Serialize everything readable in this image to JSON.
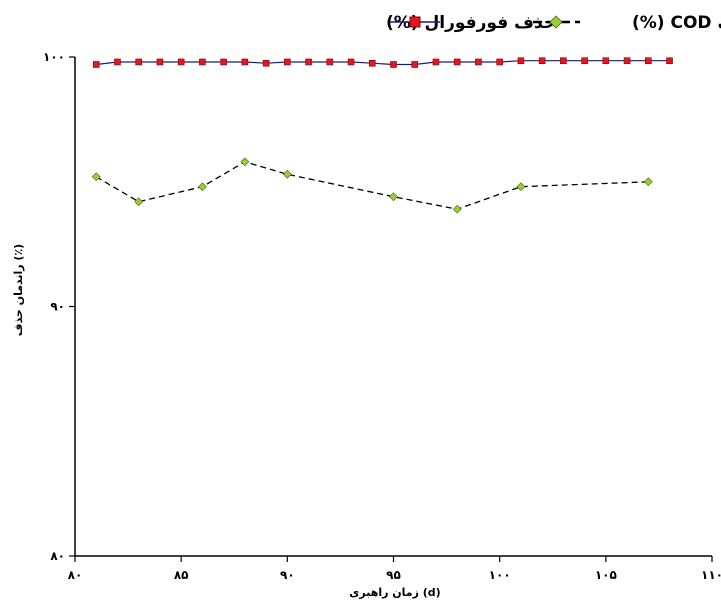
{
  "chart_data": {
    "type": "line",
    "title": "",
    "xlabel": "زمان راهبری (d)",
    "ylabel": "راندمان حذف (٪)",
    "xlim": [
      80,
      110
    ],
    "ylim": [
      80,
      100
    ],
    "x_ticks": [
      80,
      85,
      90,
      95,
      100,
      105,
      110
    ],
    "x_tick_labels": [
      "۸۰",
      "۸۵",
      "۹۰",
      "۹۵",
      "۱۰۰",
      "۱۰۵",
      "۱۱۰"
    ],
    "y_ticks": [
      80,
      90,
      100
    ],
    "y_tick_labels": [
      "۸۰",
      "۹۰",
      "۱۰۰"
    ],
    "grid": false,
    "legend_position": "top",
    "series": [
      {
        "name": "حذف فورفورال (%)",
        "color": "#1a1a8c",
        "marker_color": "#e0181f",
        "marker": "square",
        "line_style": "solid",
        "x": [
          81,
          82,
          83,
          84,
          85,
          86,
          87,
          88,
          89,
          90,
          91,
          92,
          93,
          94,
          95,
          96,
          97,
          98,
          99,
          100,
          101,
          102,
          103,
          104,
          105,
          106,
          107,
          108
        ],
        "y": [
          99.7,
          99.8,
          99.8,
          99.8,
          99.8,
          99.8,
          99.8,
          99.8,
          99.75,
          99.8,
          99.8,
          99.8,
          99.8,
          99.75,
          99.7,
          99.7,
          99.8,
          99.8,
          99.8,
          99.8,
          99.85,
          99.85,
          99.85,
          99.85,
          99.85,
          99.85,
          99.85,
          99.85
        ]
      },
      {
        "name": "حذف COD (%)",
        "color": "#000000",
        "marker_color": "#9acd32",
        "marker": "diamond",
        "line_style": "dashed",
        "x": [
          81,
          83,
          86,
          88,
          90,
          95,
          98,
          101,
          107
        ],
        "y": [
          95.2,
          94.2,
          94.8,
          95.8,
          95.3,
          94.4,
          93.9,
          94.8,
          95.0
        ]
      }
    ]
  }
}
